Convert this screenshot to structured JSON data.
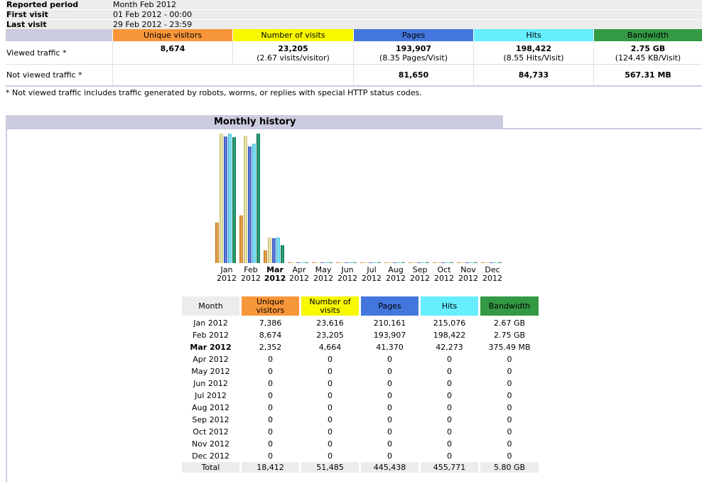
{
  "summary": {
    "reported_period_label": "Reported period",
    "reported_period_value": "Month Feb 2012",
    "first_visit_label": "First visit",
    "first_visit_value": "01 Feb 2012 - 00:00",
    "last_visit_label": "Last visit",
    "last_visit_value": "29 Feb 2012 - 23:59",
    "headers": [
      "Unique visitors",
      "Number of visits",
      "Pages",
      "Hits",
      "Bandwidth"
    ],
    "viewed_label": "Viewed traffic *",
    "viewed": {
      "unique": "8,674",
      "visits": "23,205",
      "visits_sub": "(2.67 visits/visitor)",
      "pages": "193,907",
      "pages_sub": "(8.35 Pages/Visit)",
      "hits": "198,422",
      "hits_sub": "(8.55 Hits/Visit)",
      "bandwidth": "2.75 GB",
      "bandwidth_sub": "(124.45 KB/Visit)"
    },
    "not_viewed_label": "Not viewed traffic *",
    "not_viewed": {
      "pages": "81,650",
      "hits": "84,733",
      "bandwidth": "567.31 MB"
    },
    "footnote": "* Not viewed traffic includes traffic generated by robots, worms, or replies with special HTTP status codes."
  },
  "colors": {
    "unique": "#f8963a",
    "visits": "#f8f800",
    "pages": "#4477dd",
    "hits": "#66eeff",
    "bandwidth": "#339944",
    "header_gray": "#cccce0"
  },
  "monthly_history": {
    "title": "Monthly history",
    "table_headers": {
      "month": "Month",
      "unique": "Unique visitors",
      "visits": "Number of visits",
      "pages": "Pages",
      "hits": "Hits",
      "bandwidth": "Bandwidth"
    },
    "chart_labels": [
      {
        "m": "Jan",
        "y": "2012"
      },
      {
        "m": "Feb",
        "y": "2012"
      },
      {
        "m": "Mar",
        "y": "2012"
      },
      {
        "m": "Apr",
        "y": "2012"
      },
      {
        "m": "May",
        "y": "2012"
      },
      {
        "m": "Jun",
        "y": "2012"
      },
      {
        "m": "Jul",
        "y": "2012"
      },
      {
        "m": "Aug",
        "y": "2012"
      },
      {
        "m": "Sep",
        "y": "2012"
      },
      {
        "m": "Oct",
        "y": "2012"
      },
      {
        "m": "Nov",
        "y": "2012"
      },
      {
        "m": "Dec",
        "y": "2012"
      }
    ],
    "current_month_index": 2,
    "rows": [
      {
        "month": "Jan 2012",
        "unique": "7,386",
        "visits": "23,616",
        "pages": "210,161",
        "hits": "215,076",
        "bandwidth": "2.67 GB"
      },
      {
        "month": "Feb 2012",
        "unique": "8,674",
        "visits": "23,205",
        "pages": "193,907",
        "hits": "198,422",
        "bandwidth": "2.75 GB"
      },
      {
        "month": "Mar 2012",
        "unique": "2,352",
        "visits": "4,664",
        "pages": "41,370",
        "hits": "42,273",
        "bandwidth": "375.49 MB"
      },
      {
        "month": "Apr 2012",
        "unique": "0",
        "visits": "0",
        "pages": "0",
        "hits": "0",
        "bandwidth": "0"
      },
      {
        "month": "May 2012",
        "unique": "0",
        "visits": "0",
        "pages": "0",
        "hits": "0",
        "bandwidth": "0"
      },
      {
        "month": "Jun 2012",
        "unique": "0",
        "visits": "0",
        "pages": "0",
        "hits": "0",
        "bandwidth": "0"
      },
      {
        "month": "Jul 2012",
        "unique": "0",
        "visits": "0",
        "pages": "0",
        "hits": "0",
        "bandwidth": "0"
      },
      {
        "month": "Aug 2012",
        "unique": "0",
        "visits": "0",
        "pages": "0",
        "hits": "0",
        "bandwidth": "0"
      },
      {
        "month": "Sep 2012",
        "unique": "0",
        "visits": "0",
        "pages": "0",
        "hits": "0",
        "bandwidth": "0"
      },
      {
        "month": "Oct 2012",
        "unique": "0",
        "visits": "0",
        "pages": "0",
        "hits": "0",
        "bandwidth": "0"
      },
      {
        "month": "Nov 2012",
        "unique": "0",
        "visits": "0",
        "pages": "0",
        "hits": "0",
        "bandwidth": "0"
      },
      {
        "month": "Dec 2012",
        "unique": "0",
        "visits": "0",
        "pages": "0",
        "hits": "0",
        "bandwidth": "0"
      }
    ],
    "total": {
      "month": "Total",
      "unique": "18,412",
      "visits": "51,485",
      "pages": "445,438",
      "hits": "455,771",
      "bandwidth": "5.80 GB"
    }
  },
  "chart_data": {
    "type": "bar",
    "categories": [
      "Jan 2012",
      "Feb 2012",
      "Mar 2012",
      "Apr 2012",
      "May 2012",
      "Jun 2012",
      "Jul 2012",
      "Aug 2012",
      "Sep 2012",
      "Oct 2012",
      "Nov 2012",
      "Dec 2012"
    ],
    "series": [
      {
        "name": "Unique visitors",
        "values": [
          7386,
          8674,
          2352,
          0,
          0,
          0,
          0,
          0,
          0,
          0,
          0,
          0
        ]
      },
      {
        "name": "Number of visits",
        "values": [
          23616,
          23205,
          4664,
          0,
          0,
          0,
          0,
          0,
          0,
          0,
          0,
          0
        ]
      },
      {
        "name": "Pages",
        "values": [
          210161,
          193907,
          41370,
          0,
          0,
          0,
          0,
          0,
          0,
          0,
          0,
          0
        ]
      },
      {
        "name": "Hits",
        "values": [
          215076,
          198422,
          42273,
          0,
          0,
          0,
          0,
          0,
          0,
          0,
          0,
          0
        ]
      },
      {
        "name": "Bandwidth",
        "values": [
          2.67,
          2.75,
          0.3755,
          0,
          0,
          0,
          0,
          0,
          0,
          0,
          0,
          0
        ]
      }
    ],
    "title": "Monthly history",
    "xlabel": "",
    "ylabel": ""
  }
}
